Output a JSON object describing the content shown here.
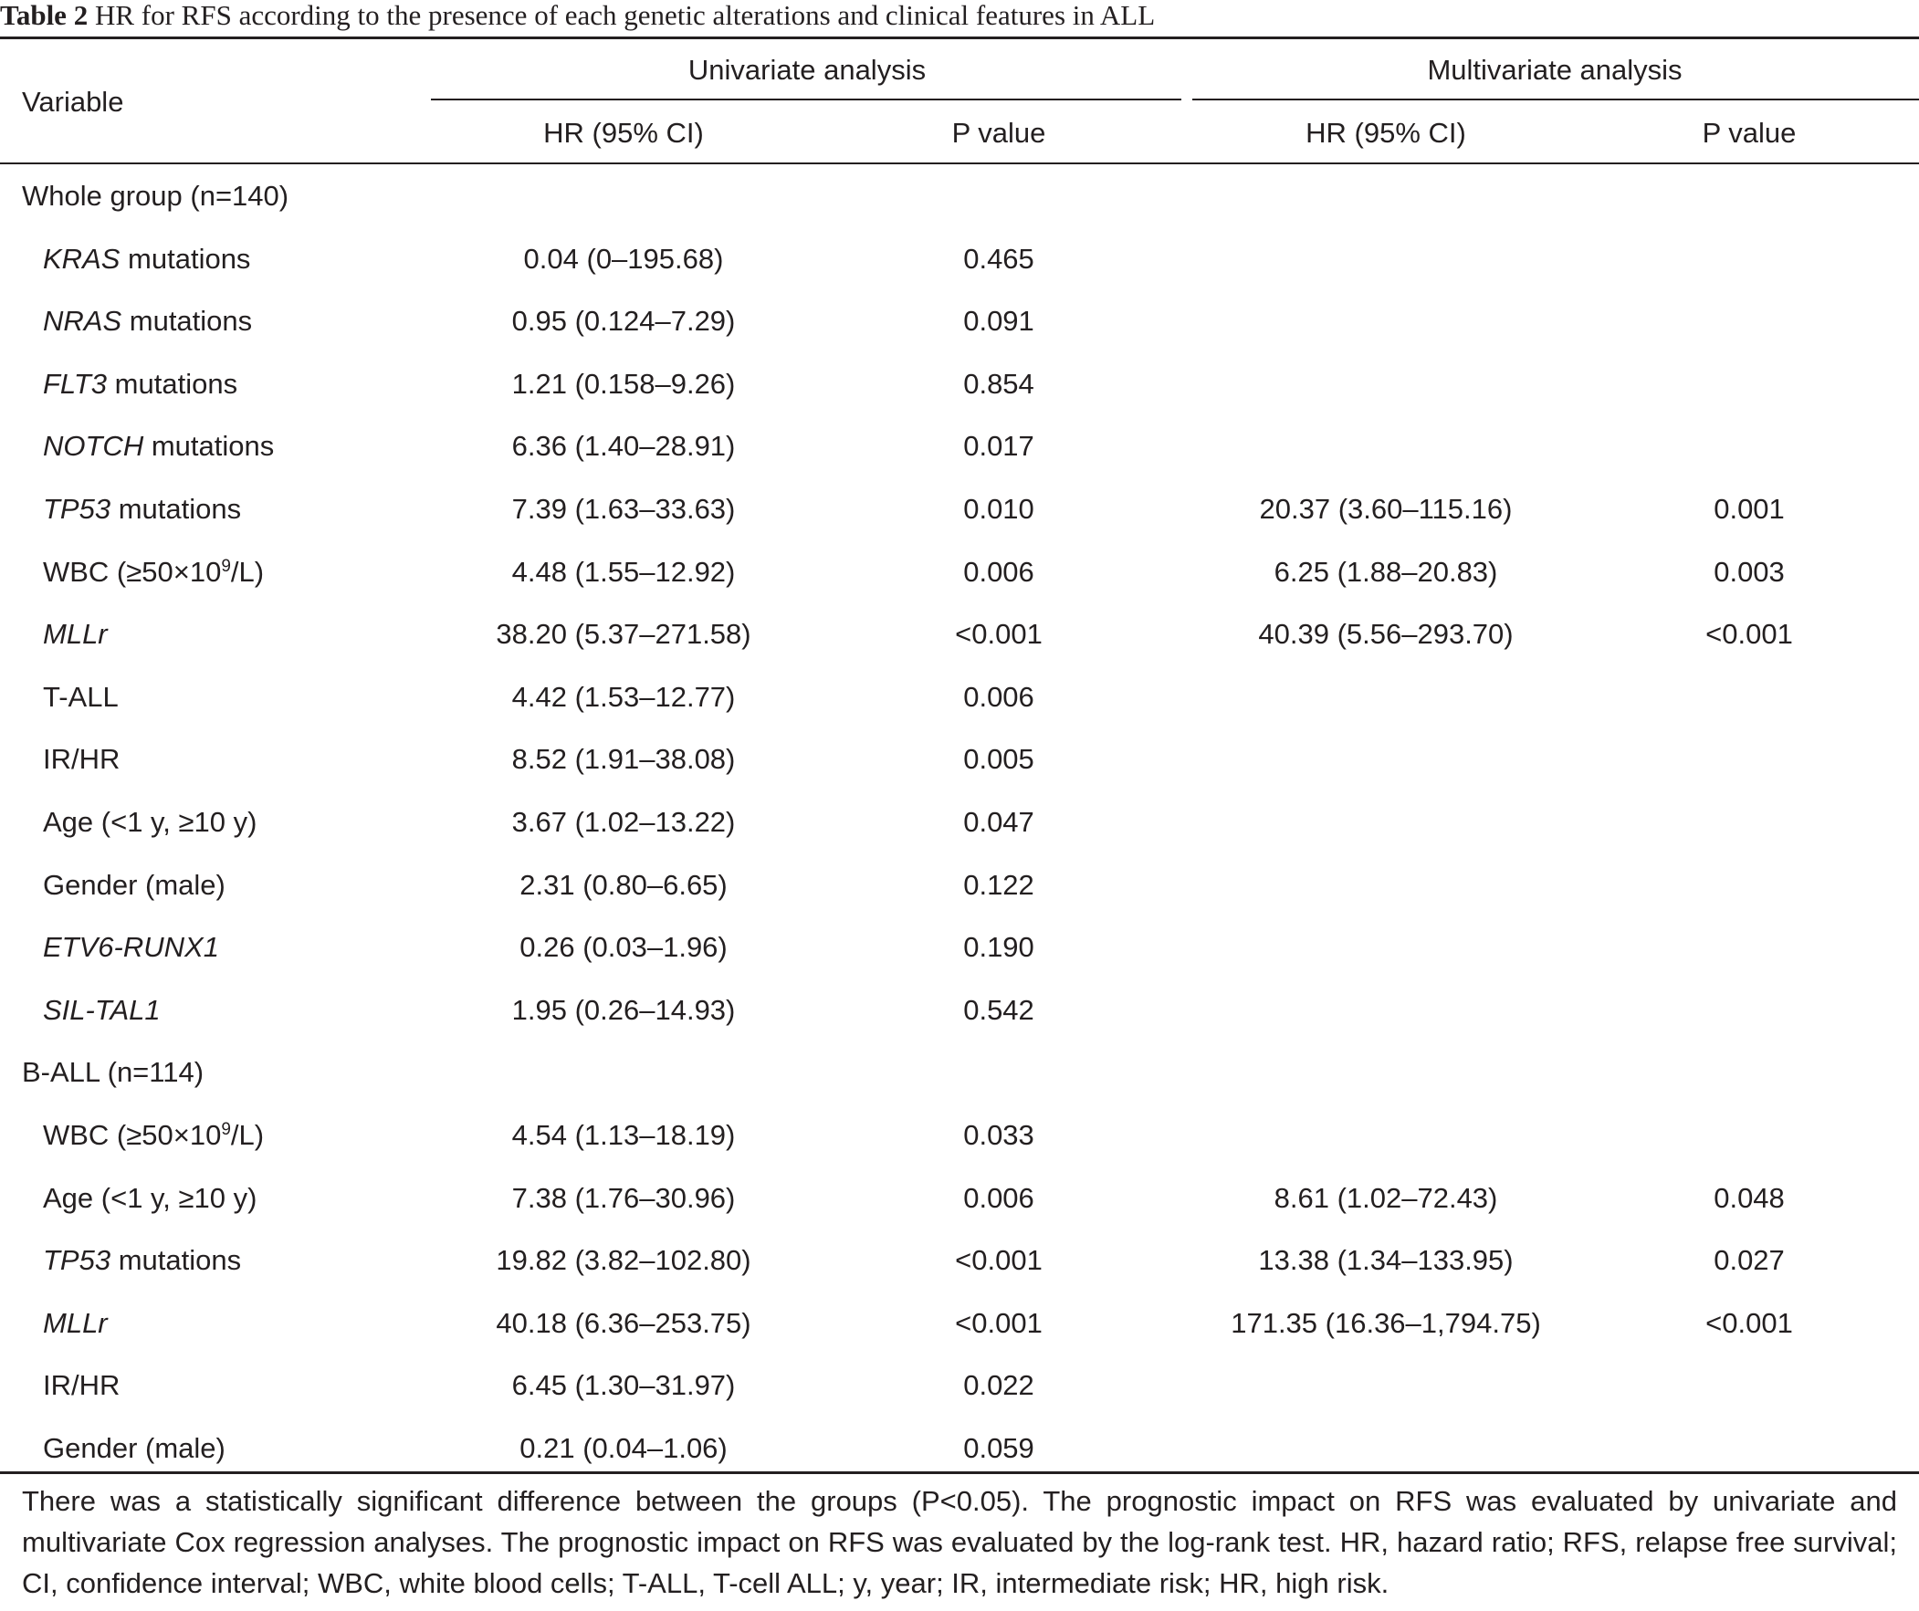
{
  "caption": {
    "label": "Table 2",
    "title": "HR for RFS according to the presence of each genetic alterations and clinical features in ALL"
  },
  "header": {
    "variable": "Variable",
    "univariate": "Univariate analysis",
    "multivariate": "Multivariate analysis",
    "hr": "HR (95% CI)",
    "p": "P value"
  },
  "rows": [
    {
      "type": "group",
      "label": "Whole group (n=140)"
    },
    {
      "type": "data",
      "gene": "KRAS",
      "suffix": " mutations",
      "u_hr": "0.04 (0–195.68)",
      "u_p": "0.465",
      "m_hr": "",
      "m_p": ""
    },
    {
      "type": "data",
      "gene": "NRAS",
      "suffix": " mutations",
      "u_hr": "0.95 (0.124–7.29)",
      "u_p": "0.091",
      "m_hr": "",
      "m_p": ""
    },
    {
      "type": "data",
      "gene": "FLT3",
      "suffix": " mutations",
      "u_hr": "1.21 (0.158–9.26)",
      "u_p": "0.854",
      "m_hr": "",
      "m_p": ""
    },
    {
      "type": "data",
      "gene": "NOTCH",
      "suffix": " mutations",
      "u_hr": "6.36 (1.40–28.91)",
      "u_p": "0.017",
      "m_hr": "",
      "m_p": ""
    },
    {
      "type": "data",
      "gene": "TP53",
      "suffix": " mutations",
      "u_hr": "7.39 (1.63–33.63)",
      "u_p": "0.010",
      "m_hr": "20.37 (3.60–115.16)",
      "m_p": "0.001"
    },
    {
      "type": "data",
      "label": "WBC (≥50×10",
      "sup": "9",
      "after": "/L)",
      "u_hr": "4.48 (1.55–12.92)",
      "u_p": "0.006",
      "m_hr": "6.25 (1.88–20.83)",
      "m_p": "0.003"
    },
    {
      "type": "data",
      "gene": "MLLr",
      "suffix": "",
      "u_hr": "38.20 (5.37–271.58)",
      "u_p": "<0.001",
      "m_hr": "40.39 (5.56–293.70)",
      "m_p": "<0.001"
    },
    {
      "type": "data",
      "label": "T-ALL",
      "u_hr": "4.42 (1.53–12.77)",
      "u_p": "0.006",
      "m_hr": "",
      "m_p": ""
    },
    {
      "type": "data",
      "label": "IR/HR",
      "u_hr": "8.52 (1.91–38.08)",
      "u_p": "0.005",
      "m_hr": "",
      "m_p": ""
    },
    {
      "type": "data",
      "label": "Age (<1 y, ≥10 y)",
      "u_hr": "3.67 (1.02–13.22)",
      "u_p": "0.047",
      "m_hr": "",
      "m_p": ""
    },
    {
      "type": "data",
      "label": "Gender (male)",
      "u_hr": "2.31 (0.80–6.65)",
      "u_p": "0.122",
      "m_hr": "",
      "m_p": ""
    },
    {
      "type": "data",
      "gene": "ETV6-RUNX1",
      "suffix": "",
      "u_hr": "0.26 (0.03–1.96)",
      "u_p": "0.190",
      "m_hr": "",
      "m_p": ""
    },
    {
      "type": "data",
      "gene": "SIL-TAL1",
      "suffix": "",
      "u_hr": "1.95 (0.26–14.93)",
      "u_p": "0.542",
      "m_hr": "",
      "m_p": ""
    },
    {
      "type": "group",
      "label": "B-ALL (n=114)"
    },
    {
      "type": "data",
      "label": "WBC (≥50×10",
      "sup": "9",
      "after": "/L)",
      "u_hr": "4.54 (1.13–18.19)",
      "u_p": "0.033",
      "m_hr": "",
      "m_p": ""
    },
    {
      "type": "data",
      "label": "Age (<1 y, ≥10 y)",
      "u_hr": "7.38 (1.76–30.96)",
      "u_p": "0.006",
      "m_hr": "8.61 (1.02–72.43)",
      "m_p": "0.048"
    },
    {
      "type": "data",
      "gene": "TP53",
      "suffix": " mutations",
      "u_hr": "19.82 (3.82–102.80)",
      "u_p": "<0.001",
      "m_hr": "13.38 (1.34–133.95)",
      "m_p": "0.027"
    },
    {
      "type": "data",
      "gene": "MLLr",
      "suffix": "",
      "u_hr": "40.18 (6.36–253.75)",
      "u_p": "<0.001",
      "m_hr": "171.35 (16.36–1,794.75)",
      "m_p": "<0.001"
    },
    {
      "type": "data",
      "label": "IR/HR",
      "u_hr": "6.45 (1.30–31.97)",
      "u_p": "0.022",
      "m_hr": "",
      "m_p": ""
    },
    {
      "type": "data",
      "label": "Gender (male)",
      "u_hr": "0.21 (0.04–1.06)",
      "u_p": "0.059",
      "m_hr": "",
      "m_p": ""
    }
  ],
  "footnote": "There was a statistically significant difference between the groups (P<0.05). The prognostic impact on RFS was evaluated by univariate and multivariate Cox regression analyses. The prognostic impact on RFS was evaluated by the log-rank test. HR, hazard ratio; RFS, relapse free survival; CI, confidence interval; WBC, white blood cells; T-ALL, T-cell ALL; y, year; IR, intermediate risk; HR, high risk."
}
